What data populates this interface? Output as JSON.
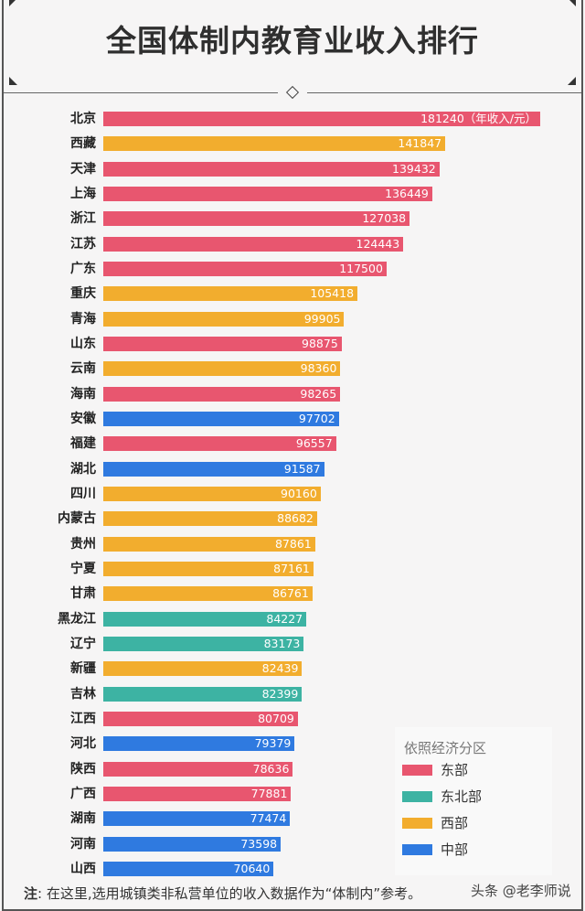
{
  "chart_data": {
    "type": "bar",
    "orientation": "horizontal",
    "title": "全国体制内教育业收入排行",
    "unit_label": "（年收入/元）",
    "xlim": [
      0,
      181240
    ],
    "categories": [
      "北京",
      "西藏",
      "天津",
      "上海",
      "浙江",
      "江苏",
      "广东",
      "重庆",
      "青海",
      "山东",
      "云南",
      "海南",
      "安徽",
      "福建",
      "湖北",
      "四川",
      "内蒙古",
      "贵州",
      "宁夏",
      "甘肃",
      "黑龙江",
      "辽宁",
      "新疆",
      "吉林",
      "江西",
      "河北",
      "陕西",
      "广西",
      "湖南",
      "河南",
      "山西"
    ],
    "values": [
      181240,
      141847,
      139432,
      136449,
      127038,
      124443,
      117500,
      105418,
      99905,
      98875,
      98360,
      98265,
      97702,
      96557,
      91587,
      90160,
      88682,
      87861,
      87161,
      86761,
      84227,
      83173,
      82439,
      82399,
      80709,
      79379,
      78636,
      77881,
      77474,
      73598,
      70640
    ],
    "regions": [
      "east",
      "west",
      "east",
      "east",
      "east",
      "east",
      "east",
      "west",
      "west",
      "east",
      "west",
      "east",
      "central",
      "east",
      "central",
      "west",
      "west",
      "west",
      "west",
      "west",
      "northeast",
      "northeast",
      "west",
      "northeast",
      "east",
      "central",
      "east",
      "east",
      "central",
      "central",
      "central"
    ],
    "legend": {
      "title": "依照经济分区",
      "items": [
        {
          "key": "east",
          "label": "东部",
          "color": "#e8566f"
        },
        {
          "key": "northeast",
          "label": "东北部",
          "color": "#3db3a3"
        },
        {
          "key": "west",
          "label": "西部",
          "color": "#f2ad2e"
        },
        {
          "key": "central",
          "label": "中部",
          "color": "#2f7ae0"
        }
      ]
    }
  },
  "footer": {
    "note_prefix": "注",
    "note_text": ": 在这里,选用城镇类非私营单位的收入数据作为“体制内”参考。",
    "watermark": "头条 @老李师说"
  }
}
